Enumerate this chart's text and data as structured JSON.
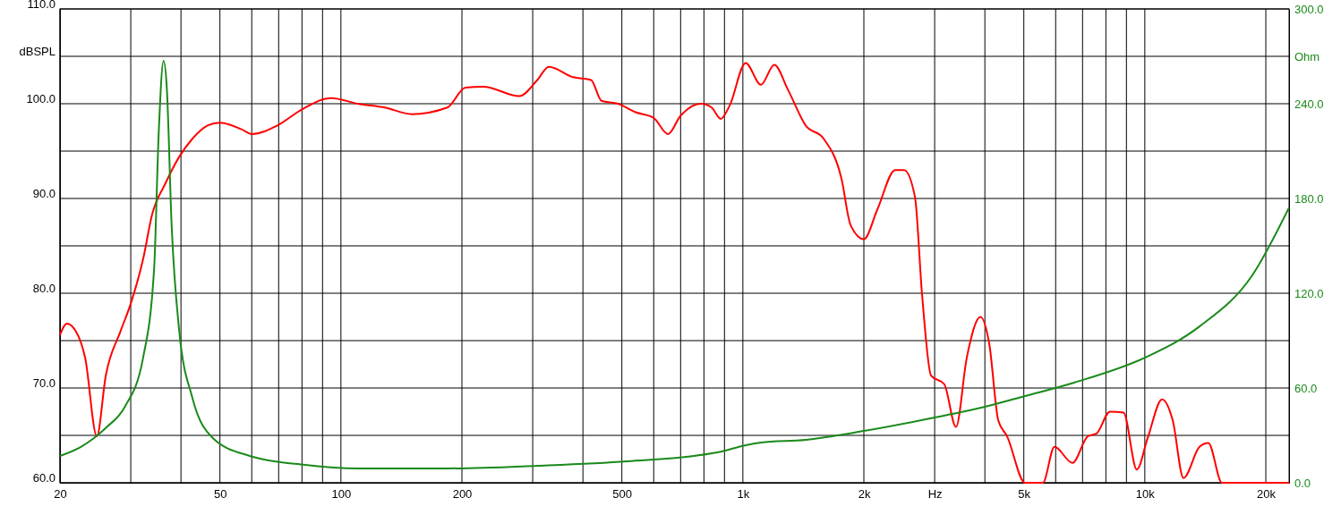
{
  "chart_data": {
    "type": "line",
    "log": "x",
    "grid": true,
    "line_style": "solid",
    "xlim": [
      20,
      22850
    ],
    "xticks": [
      20,
      {
        "value": 30,
        "label": null
      },
      {
        "value": 40,
        "label": null
      },
      50,
      {
        "value": 60,
        "label": null
      },
      {
        "value": 70,
        "label": null
      },
      {
        "value": 80,
        "label": null
      },
      {
        "value": 90,
        "label": null
      },
      100,
      200,
      {
        "value": 300,
        "label": null
      },
      {
        "value": 400,
        "label": null
      },
      500,
      {
        "value": 600,
        "label": null
      },
      {
        "value": 700,
        "label": null
      },
      {
        "value": 800,
        "label": null
      },
      {
        "value": 900,
        "label": null
      },
      {
        "value": 1000,
        "label": "1k"
      },
      {
        "value": 2000,
        "label": "2k"
      },
      {
        "value": 3000,
        "label": "Hz"
      },
      {
        "value": 4000,
        "label": null
      },
      {
        "value": 5000,
        "label": "5k"
      },
      {
        "value": 6000,
        "label": null
      },
      {
        "value": 7000,
        "label": null
      },
      {
        "value": 8000,
        "label": null
      },
      {
        "value": 9000,
        "label": null
      },
      {
        "value": 10000,
        "label": "10k"
      },
      {
        "value": 20000,
        "label": "20k"
      }
    ],
    "ylim": [
      60,
      110
    ],
    "yticks": [
      {
        "value": 60,
        "label": "60.0"
      },
      {
        "value": 65,
        "label": null
      },
      {
        "value": 70,
        "label": "70.0"
      },
      {
        "value": 75,
        "label": null
      },
      {
        "value": 80,
        "label": "80.0"
      },
      {
        "value": 85,
        "label": null
      },
      {
        "value": 90,
        "label": "90.0"
      },
      {
        "value": 95,
        "label": null
      },
      {
        "value": 100,
        "label": "100.0"
      },
      {
        "value": 105,
        "label": "dBSPL"
      },
      {
        "value": 110,
        "label": "110.0"
      }
    ],
    "y2lim": [
      0,
      300
    ],
    "y2ticks": [
      {
        "value": 0,
        "label": "0.0"
      },
      {
        "value": 30,
        "label": null
      },
      {
        "value": 60,
        "label": "60.0"
      },
      {
        "value": 90,
        "label": null
      },
      {
        "value": 120,
        "label": "120.0"
      },
      {
        "value": 150,
        "label": null
      },
      {
        "value": 180,
        "label": "180.0"
      },
      {
        "value": 210,
        "label": null
      },
      {
        "value": 240,
        "label": "240.0"
      },
      {
        "value": 270,
        "label": "Ohm"
      },
      {
        "value": 300,
        "label": "300.0"
      }
    ],
    "series": [
      {
        "color": "#ff0000",
        "axis": "y",
        "x": [
          20,
          20.8,
          21.9,
          23.1,
          24.7,
          26,
          28.3,
          30,
          32.2,
          33.9,
          36.6,
          39.6,
          42.7,
          46.6,
          50,
          56.6,
          60,
          69.5,
          80,
          94.6,
          110,
          128.6,
          150,
          184,
          204,
          226,
          278,
          308,
          329,
          378,
          419,
          445,
          489,
          541,
          600,
          651,
          699,
          787,
          836,
          881,
          927,
          1016,
          1109,
          1197,
          1294,
          1433,
          1589,
          1759,
          1853,
          2000,
          2159,
          2393,
          2518,
          2679,
          2792,
          2939,
          3170,
          3390,
          3606,
          3899,
          4104,
          4318,
          4544,
          5035,
          5575,
          5960,
          6606,
          7210,
          7586,
          8190,
          8852,
          9553,
          10160,
          11040,
          11730,
          12480,
          13680,
          14390,
          15560,
          22850
        ],
        "values": [
          75.6,
          76.8,
          76.0,
          73.2,
          64.9,
          71.3,
          76.0,
          78.9,
          83.6,
          88.3,
          91.6,
          94.4,
          96.3,
          97.7,
          98.0,
          97.3,
          96.8,
          97.7,
          99.4,
          100.6,
          100.0,
          99.6,
          98.9,
          99.6,
          101.7,
          101.8,
          100.8,
          102.5,
          103.9,
          102.8,
          102.5,
          100.3,
          100.0,
          99.1,
          98.5,
          96.8,
          98.7,
          100.0,
          99.6,
          98.4,
          99.8,
          104.3,
          102.0,
          104.1,
          101.5,
          97.7,
          96.3,
          92.1,
          87.2,
          85.7,
          88.8,
          93.0,
          93.0,
          90.2,
          79.8,
          71.3,
          70.4,
          65.9,
          73.2,
          77.5,
          74.6,
          66.6,
          64.9,
          60.0,
          60.0,
          63.8,
          62.1,
          64.9,
          65.2,
          67.5,
          67.4,
          61.4,
          64.7,
          68.8,
          66.6,
          60.5,
          63.8,
          64.2,
          60.0,
          60.0
        ]
      },
      {
        "color": "#1a8a1a",
        "axis": "y2",
        "x": [
          20,
          22.5,
          24.3,
          26.1,
          29,
          32.2,
          34.3,
          35.2,
          36.2,
          36.9,
          37.9,
          39.6,
          42.7,
          48,
          59.3,
          81.5,
          110,
          184,
          308,
          516,
          863,
          1016,
          1109,
          1433,
          2000,
          3000,
          4000,
          5035,
          6670,
          10000,
          13680,
          18500,
          22850
        ],
        "values": [
          17.0,
          22.6,
          28.3,
          35.1,
          48.1,
          79.2,
          135.8,
          220.7,
          267.1,
          249.0,
          164.1,
          96.2,
          53.8,
          28.3,
          17.0,
          11.3,
          9.1,
          9.1,
          10.8,
          13.6,
          19.2,
          23.8,
          25.5,
          27.2,
          32.8,
          41.3,
          48.1,
          54.9,
          63.4,
          79.2,
          99.0,
          131.3,
          174.3
        ]
      }
    ]
  }
}
